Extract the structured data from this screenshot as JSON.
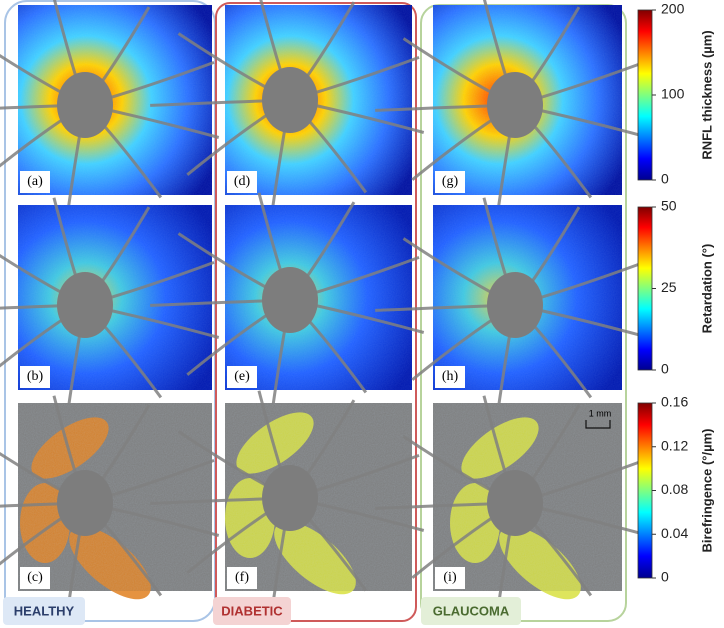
{
  "columns": [
    {
      "label": "HEALTHY",
      "panels": [
        "(a)",
        "(b)",
        "(c)"
      ]
    },
    {
      "label": "DIABETIC",
      "panels": [
        "(d)",
        "(e)",
        "(f)"
      ]
    },
    {
      "label": "GLAUCOMA",
      "panels": [
        "(g)",
        "(h)",
        "(i)"
      ]
    }
  ],
  "colorbars": [
    {
      "title": "RNFL thickness (µm)",
      "lim": [
        0,
        200
      ],
      "ticks": [
        0,
        100,
        200
      ]
    },
    {
      "title": "Retardation (°)",
      "lim": [
        0,
        50
      ],
      "ticks": [
        0,
        25,
        50
      ]
    },
    {
      "title": "Birefringence (°/µm)",
      "lim": [
        0,
        0.16
      ],
      "ticks": [
        0,
        0.04,
        0.08,
        0.12,
        0.16
      ]
    }
  ],
  "scale_bar": "1 mm"
}
